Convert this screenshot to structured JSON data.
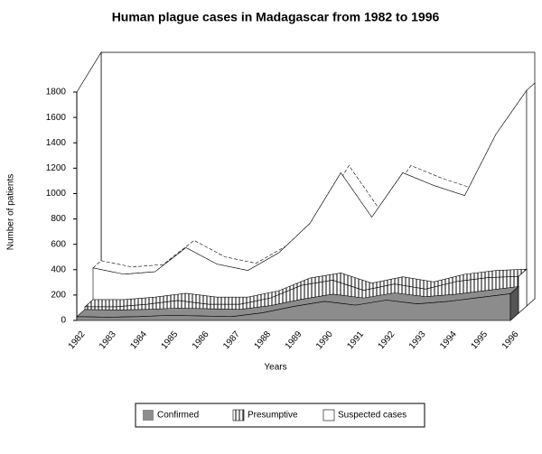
{
  "chart_data": {
    "type": "area3d",
    "title": "Human plague cases in Madagascar from 1982 to 1996",
    "x_label": "Years",
    "y_label": "Number of patients",
    "categories": [
      "1982",
      "1983",
      "1984",
      "1985",
      "1986",
      "1987",
      "1988",
      "1989",
      "1990",
      "1991",
      "1992",
      "1993",
      "1994",
      "1995",
      "1996"
    ],
    "series": [
      {
        "name": "Confirmed",
        "color": "#8c8c8c",
        "pattern": "solid",
        "values": [
          30,
          25,
          30,
          40,
          35,
          30,
          60,
          110,
          150,
          120,
          160,
          130,
          150,
          180,
          210
        ]
      },
      {
        "name": "Presumptive",
        "color": "#000000",
        "pattern": "hatch",
        "values": [
          50,
          50,
          70,
          100,
          70,
          70,
          120,
          220,
          260,
          180,
          230,
          190,
          250,
          280,
          290
        ]
      },
      {
        "name": "Suspected cases",
        "color": "#ffffff",
        "pattern": "outline",
        "values": [
          300,
          250,
          270,
          460,
          330,
          280,
          420,
          650,
          1050,
          700,
          1050,
          950,
          870,
          1350,
          1700
        ]
      }
    ],
    "ylim": [
      0,
      1800
    ],
    "yticks": [
      0,
      200,
      400,
      600,
      800,
      1000,
      1200,
      1400,
      1600,
      1800
    ],
    "legend": "bottom"
  }
}
